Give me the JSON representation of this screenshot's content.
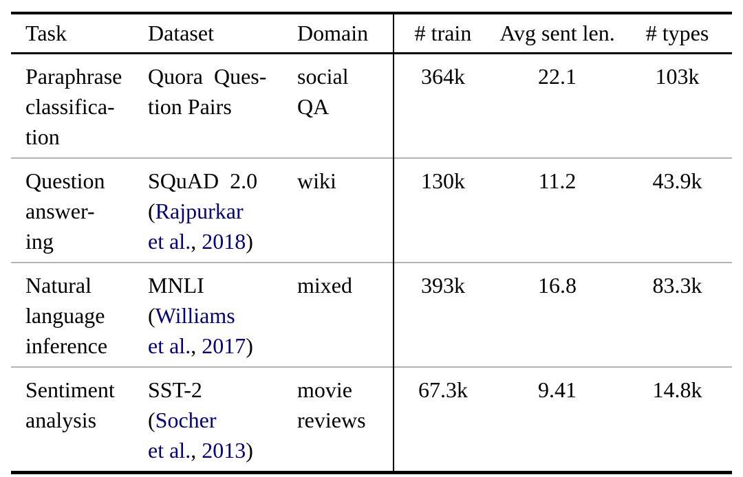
{
  "colors": {
    "citation_link": "#000080",
    "rule_heavy": "#000000",
    "rule_light": "#b4b4b4"
  },
  "table": {
    "headers": [
      "Task",
      "Dataset",
      "Domain",
      "# train",
      "Avg sent len.",
      "# types"
    ],
    "rows": [
      {
        "task": "Paraphrase\nclassifica-\ntion",
        "dataset": [
          {
            "text": "Quora  Ques-\ntion Pairs"
          }
        ],
        "domain": "social\nQA",
        "num_train": "364k",
        "avg_sent_len": "22.1",
        "num_types": "103k"
      },
      {
        "task": "Question\nanswer-\ning",
        "dataset": [
          {
            "text": "SQuAD  2.0\n("
          },
          {
            "text": "Rajpurkar\net al.",
            "link": true
          },
          {
            "text": ", "
          },
          {
            "text": "2018",
            "link": true
          },
          {
            "text": ")"
          }
        ],
        "domain": "wiki",
        "num_train": "130k",
        "avg_sent_len": "11.2",
        "num_types": "43.9k"
      },
      {
        "task": "Natural\nlanguage\ninference",
        "dataset": [
          {
            "text": "MNLI\n("
          },
          {
            "text": "Williams\net al.",
            "link": true
          },
          {
            "text": ", "
          },
          {
            "text": "2017",
            "link": true
          },
          {
            "text": ")"
          }
        ],
        "domain": "mixed",
        "num_train": "393k",
        "avg_sent_len": "16.8",
        "num_types": "83.3k"
      },
      {
        "task": "Sentiment\nanalysis",
        "dataset": [
          {
            "text": "SST-2\n("
          },
          {
            "text": "Socher\net al.",
            "link": true
          },
          {
            "text": ", "
          },
          {
            "text": "2013",
            "link": true
          },
          {
            "text": ")"
          }
        ],
        "domain": "movie\nreviews",
        "num_train": "67.3k",
        "avg_sent_len": "9.41",
        "num_types": "14.8k"
      }
    ]
  }
}
